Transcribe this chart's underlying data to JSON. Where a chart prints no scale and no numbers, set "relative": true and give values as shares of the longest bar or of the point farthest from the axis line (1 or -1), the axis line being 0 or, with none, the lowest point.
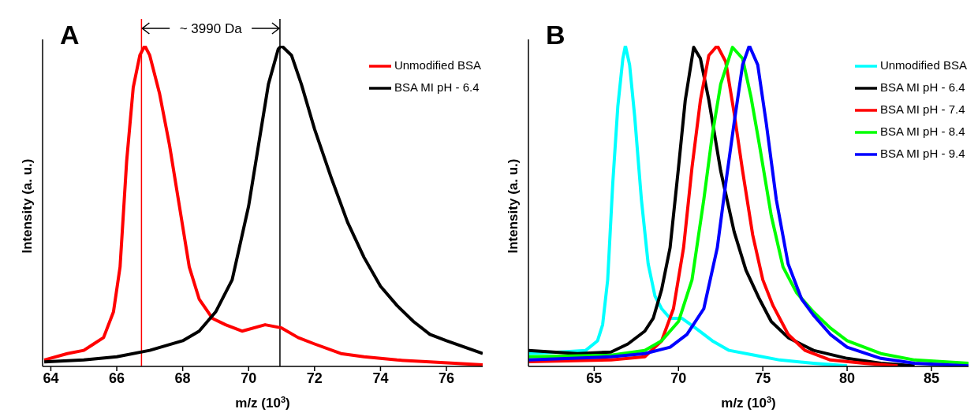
{
  "chart_data": [
    {
      "type": "line",
      "title": "A",
      "xlabel": "m/z (10$^{3}$)",
      "ylabel": "Intensity (a. u.)",
      "relative": true,
      "xlim": [
        63.75,
        77.1
      ],
      "xticks": [
        64,
        66,
        68,
        70,
        72,
        74,
        76
      ],
      "legend": "top right",
      "grid": false,
      "marker": "none",
      "line_style": "solid",
      "series": [
        {
          "name": "Unmodified BSA",
          "color": "#ff0000",
          "x": [
            63.8,
            64.5,
            65.0,
            65.3,
            65.6,
            65.9,
            66.1,
            66.3,
            66.5,
            66.7,
            66.85,
            67.0,
            67.3,
            67.6,
            67.9,
            68.2,
            68.5,
            68.9,
            69.3,
            69.8,
            70.5,
            71.0,
            71.5,
            72.0,
            72.8,
            73.5,
            74.5,
            75.5,
            77.1
          ],
          "values": [
            0.02,
            0.04,
            0.05,
            0.07,
            0.09,
            0.17,
            0.31,
            0.64,
            0.87,
            0.97,
            1.0,
            0.97,
            0.85,
            0.69,
            0.5,
            0.31,
            0.21,
            0.15,
            0.13,
            0.11,
            0.13,
            0.12,
            0.09,
            0.07,
            0.04,
            0.03,
            0.02,
            0.014,
            0.005
          ]
        },
        {
          "name": "BSA MI pH - 6.4",
          "color": "#000000",
          "x": [
            63.8,
            65,
            66,
            67,
            68,
            68.5,
            69,
            69.5,
            70,
            70.3,
            70.6,
            70.9,
            71.0,
            71.3,
            71.6,
            72,
            72.5,
            73,
            73.5,
            74,
            74.5,
            75,
            75.5,
            76,
            77.1
          ],
          "values": [
            0.014,
            0.02,
            0.03,
            0.05,
            0.08,
            0.11,
            0.17,
            0.27,
            0.5,
            0.69,
            0.88,
            0.99,
            1.0,
            0.97,
            0.88,
            0.74,
            0.59,
            0.45,
            0.34,
            0.25,
            0.19,
            0.14,
            0.1,
            0.08,
            0.04
          ]
        }
      ],
      "ref_lines": [
        {
          "axis": "x",
          "value": 66.75,
          "color": "#ff0000"
        },
        {
          "axis": "x",
          "value": 70.95,
          "color": "#000000"
        }
      ],
      "annotations": [
        "~ 3990 Da"
      ]
    },
    {
      "type": "line",
      "title": "B",
      "xlabel": "m/z (10$^{3}$)",
      "ylabel": "Intensity (a. u.)",
      "relative": true,
      "xlim": [
        61.1,
        87.2
      ],
      "xticks": [
        65,
        70,
        75,
        80,
        85
      ],
      "legend": "top right",
      "grid": false,
      "marker": "none",
      "line_style": "solid",
      "series": [
        {
          "name": "Unmodified BSA",
          "color": "#00ffff",
          "x": [
            61.1,
            63,
            64.5,
            65.2,
            65.5,
            65.8,
            66.1,
            66.4,
            66.7,
            66.85,
            67.1,
            67.4,
            67.8,
            68.2,
            68.6,
            69,
            69.5,
            70.2,
            71,
            72,
            73,
            74.5,
            76,
            78,
            80
          ],
          "values": [
            0.04,
            0.045,
            0.05,
            0.08,
            0.13,
            0.27,
            0.57,
            0.81,
            0.96,
            1,
            0.94,
            0.78,
            0.52,
            0.32,
            0.22,
            0.18,
            0.15,
            0.15,
            0.12,
            0.08,
            0.05,
            0.035,
            0.02,
            0.01,
            0.002
          ]
        },
        {
          "name": "BSA MI pH - 6.4",
          "color": "#000000",
          "x": [
            61.1,
            64,
            66,
            67,
            68,
            68.5,
            69,
            69.5,
            70,
            70.4,
            70.9,
            71.3,
            71.8,
            72.5,
            73.3,
            74,
            74.8,
            75.5,
            76.5,
            78,
            80,
            82,
            84
          ],
          "values": [
            0.05,
            0.04,
            0.045,
            0.07,
            0.11,
            0.15,
            0.24,
            0.37,
            0.62,
            0.83,
            0.995,
            0.96,
            0.83,
            0.61,
            0.42,
            0.3,
            0.21,
            0.14,
            0.09,
            0.05,
            0.025,
            0.01,
            0.002
          ]
        },
        {
          "name": "BSA MI pH - 7.4",
          "color": "#ff0000",
          "x": [
            61.1,
            66,
            68,
            69,
            69.7,
            70.3,
            70.8,
            71.3,
            71.8,
            72.3,
            72.8,
            73.3,
            73.8,
            74.4,
            75,
            75.6,
            76.5,
            77.5,
            79,
            81,
            83
          ],
          "values": [
            0.015,
            0.02,
            0.03,
            0.08,
            0.18,
            0.37,
            0.62,
            0.83,
            0.97,
            1,
            0.95,
            0.79,
            0.61,
            0.41,
            0.27,
            0.19,
            0.1,
            0.05,
            0.02,
            0.01,
            0.002
          ]
        },
        {
          "name": "BSA MI pH - 8.4",
          "color": "#00ff00",
          "x": [
            61.1,
            66,
            68,
            69,
            70,
            70.8,
            71.5,
            72,
            72.5,
            73.2,
            73.8,
            74.3,
            74.8,
            75.5,
            76.2,
            77,
            78,
            79,
            80,
            82,
            84,
            87.2
          ],
          "values": [
            0.03,
            0.035,
            0.05,
            0.08,
            0.14,
            0.27,
            0.52,
            0.72,
            0.88,
            0.995,
            0.96,
            0.84,
            0.69,
            0.47,
            0.31,
            0.23,
            0.17,
            0.12,
            0.08,
            0.04,
            0.02,
            0.01
          ]
        },
        {
          "name": "BSA MI pH - 9.4",
          "color": "#0000ff",
          "x": [
            61.1,
            66,
            68,
            69.5,
            70.5,
            71.5,
            72.3,
            72.8,
            73.3,
            73.8,
            74.2,
            74.7,
            75.2,
            75.8,
            76.5,
            77.3,
            78,
            79,
            80,
            82,
            84,
            87.2
          ],
          "values": [
            0.02,
            0.03,
            0.04,
            0.06,
            0.1,
            0.18,
            0.37,
            0.57,
            0.76,
            0.94,
            1,
            0.94,
            0.76,
            0.52,
            0.32,
            0.21,
            0.16,
            0.1,
            0.06,
            0.025,
            0.01,
            0.002
          ]
        }
      ]
    }
  ]
}
